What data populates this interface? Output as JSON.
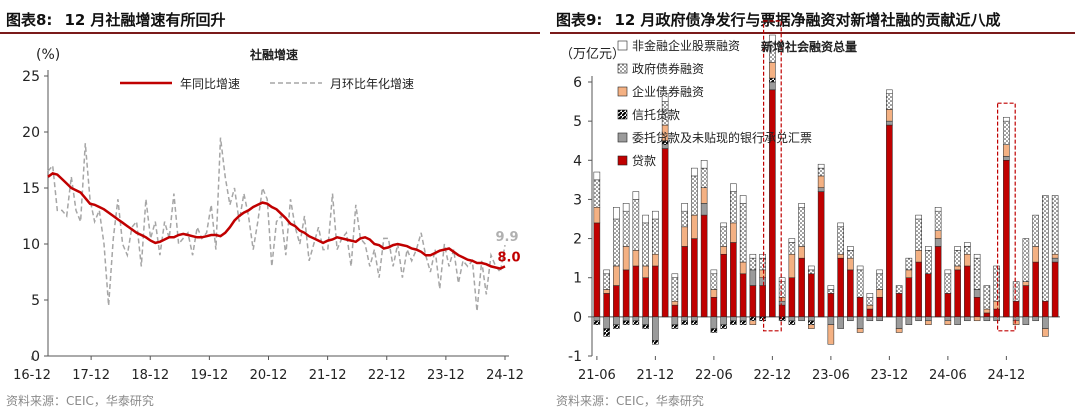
{
  "left": {
    "fig_label": "图表8:",
    "title": "12 月社融增速有所回升",
    "source": "资料来源：CEIC，华泰研究",
    "chart_data": {
      "type": "line",
      "title": "社融增速",
      "ylabel": "(%)",
      "ylim": [
        0,
        25
      ],
      "yticks": [
        0,
        5,
        10,
        15,
        20,
        25
      ],
      "xticks": [
        "16-12",
        "17-12",
        "18-12",
        "19-12",
        "20-12",
        "21-12",
        "22-12",
        "23-12",
        "24-12"
      ],
      "legend_placement": "top",
      "annotations": {
        "yoy_last": "8.0",
        "mom_last": "9.9"
      },
      "colors": {
        "yoy": "#c00000",
        "mom": "#a6a6a6",
        "label_mom": "#b0b0b0"
      },
      "series": [
        {
          "name": "年同比增速",
          "style": "solid",
          "values": [
            16.0,
            16.3,
            16.2,
            15.8,
            15.4,
            15.0,
            14.8,
            14.6,
            14.1,
            13.6,
            13.5,
            13.3,
            13.1,
            12.8,
            12.5,
            12.2,
            11.9,
            11.6,
            11.3,
            11.0,
            10.8,
            10.6,
            10.3,
            10.1,
            10.2,
            10.4,
            10.6,
            10.6,
            10.8,
            10.9,
            10.8,
            10.7,
            10.6,
            10.6,
            10.7,
            10.8,
            10.8,
            10.7,
            11.0,
            11.5,
            12.1,
            12.5,
            12.8,
            13.0,
            13.3,
            13.5,
            13.7,
            13.6,
            13.3,
            13.1,
            12.7,
            12.3,
            11.8,
            11.6,
            11.2,
            11.0,
            10.7,
            10.5,
            10.3,
            10.1,
            10.3,
            10.4,
            10.6,
            10.5,
            10.4,
            10.3,
            10.2,
            10.5,
            10.6,
            10.4,
            10.0,
            9.9,
            9.6,
            9.7,
            9.9,
            10.0,
            9.9,
            9.8,
            9.6,
            9.5,
            9.3,
            9.0,
            9.0,
            9.2,
            9.4,
            9.5,
            9.6,
            9.3,
            9.0,
            8.8,
            8.6,
            8.5,
            8.3,
            8.3,
            8.2,
            8.0,
            7.9,
            7.8,
            8.0
          ]
        },
        {
          "name": "月环比年化增速",
          "style": "dashed",
          "values": [
            16.5,
            17.0,
            13.0,
            13.0,
            12.5,
            16.0,
            13.0,
            12.0,
            19.0,
            14.0,
            12.0,
            13.0,
            10.0,
            4.5,
            10.5,
            14.0,
            10.0,
            9.0,
            11.5,
            12.0,
            8.0,
            14.0,
            10.5,
            12.0,
            9.0,
            12.0,
            10.5,
            14.5,
            10.0,
            10.5,
            11.0,
            9.0,
            11.5,
            10.5,
            11.0,
            13.5,
            9.5,
            19.5,
            16.0,
            13.5,
            15.0,
            12.0,
            14.5,
            12.5,
            9.5,
            12.0,
            15.0,
            14.0,
            8.0,
            12.0,
            12.5,
            9.0,
            14.0,
            11.5,
            10.0,
            12.5,
            8.5,
            10.0,
            11.5,
            9.5,
            9.5,
            14.5,
            9.5,
            10.5,
            11.0,
            8.0,
            13.5,
            10.5,
            10.0,
            8.0,
            9.5,
            7.0,
            10.5,
            10.5,
            8.0,
            10.0,
            7.0,
            9.5,
            8.5,
            9.5,
            11.0,
            9.0,
            7.5,
            9.5,
            6.0,
            10.0,
            8.0,
            9.5,
            6.5,
            8.5,
            8.0,
            8.5,
            4.0,
            8.5,
            5.5,
            9.0,
            8.0,
            7.5,
            9.9
          ]
        }
      ]
    }
  },
  "right": {
    "fig_label": "图表9:",
    "title": "12 月政府债净发行与票据净融资对新增社融的贡献近八成",
    "source": "资料来源：CEIC，华泰研究",
    "chart_data": {
      "type": "bar",
      "stacked": true,
      "ylabel": "（万亿元）",
      "ylim": [
        -1,
        6
      ],
      "yticks": [
        -1,
        0,
        1,
        2,
        3,
        4,
        5,
        6
      ],
      "xticks": [
        "21-06",
        "21-12",
        "22-06",
        "22-12",
        "23-06",
        "23-12",
        "24-06",
        "24-12"
      ],
      "total_label": "新增社会融资总量",
      "highlighted_months": [
        18,
        42
      ],
      "colors": {
        "loan": "#c00000",
        "entrust": "#9b9b9b",
        "corp": "#f4b183",
        "frame": "#c00000"
      },
      "legend": [
        {
          "key": "other",
          "label": "非金融企业股票融资"
        },
        {
          "key": "gov",
          "label": "政府债券融资"
        },
        {
          "key": "corp",
          "label": "企业债券融资"
        },
        {
          "key": "trust",
          "label": "信托贷款"
        },
        {
          "key": "entrust",
          "label": "委托贷款及未贴现的银行承兑汇票"
        },
        {
          "key": "loan",
          "label": "贷款"
        }
      ],
      "series": [
        {
          "name": "贷款",
          "key": "loan",
          "values": [
            2.4,
            0.6,
            0.8,
            1.2,
            1.3,
            1.0,
            1.3,
            4.3,
            0.3,
            1.8,
            2.0,
            2.6,
            0.5,
            1.6,
            1.9,
            1.1,
            0.8,
            0.8,
            5.8,
            0.3,
            1.0,
            1.5,
            1.1,
            3.2,
            0.6,
            1.5,
            1.2,
            0.5,
            0.2,
            0.5,
            4.9,
            0.6,
            1.0,
            1.4,
            1.1,
            1.8,
            0.6,
            1.2,
            1.3,
            0.5,
            0.1,
            0.2,
            4.0,
            0.4,
            0.8,
            1.4,
            0.4,
            1.4
          ]
        },
        {
          "name": "委托贷款及未贴现的银行承兑汇票",
          "key": "entrust",
          "values": [
            -0.1,
            -0.3,
            -0.2,
            -0.1,
            -0.1,
            -0.2,
            -0.6,
            0.1,
            -0.2,
            -0.1,
            -0.1,
            0.3,
            -0.3,
            -0.2,
            -0.1,
            -0.1,
            0.4,
            0.2,
            0.2,
            0.1,
            -0.1,
            -0.1,
            -0.1,
            0.1,
            -0.2,
            -0.3,
            -0.1,
            -0.3,
            -0.1,
            -0.1,
            0.1,
            -0.3,
            -0.2,
            -0.1,
            -0.1,
            0.2,
            -0.1,
            -0.2,
            -0.1,
            0.2,
            -0.1,
            -0.1,
            0.1,
            -0.1,
            -0.2,
            -0.1,
            -0.3,
            0.1
          ]
        },
        {
          "name": "信托贷款",
          "key": "trust",
          "values": [
            -0.1,
            -0.2,
            -0.1,
            -0.1,
            -0.1,
            -0.1,
            -0.1,
            0.1,
            -0.1,
            -0.1,
            -0.1,
            0.0,
            -0.1,
            -0.1,
            -0.1,
            -0.1,
            -0.1,
            -0.1,
            0.1,
            -0.1,
            -0.1,
            0.0,
            -0.1,
            0.0,
            0.0,
            0.0,
            0.0,
            0.0,
            0.0,
            0.0,
            0.0,
            0.0,
            0.0,
            0.0,
            0.0,
            0.0,
            0.0,
            0.0,
            0.0,
            0.0,
            0.0,
            0.0,
            0.0,
            0.0,
            0.0,
            0.0,
            0.0,
            0.0
          ]
        },
        {
          "name": "企业债券融资",
          "key": "corp",
          "values": [
            0.4,
            0.1,
            0.5,
            0.6,
            0.4,
            0.3,
            0.3,
            0.4,
            0.1,
            0.5,
            0.6,
            0.4,
            0.2,
            0.2,
            0.5,
            0.3,
            -0.1,
            0.2,
            0.4,
            0.1,
            0.6,
            0.3,
            -0.1,
            0.3,
            -0.5,
            0.1,
            0.3,
            -0.1,
            0.1,
            0.2,
            0.3,
            -0.1,
            0.2,
            0.3,
            -0.1,
            0.2,
            -0.1,
            0.1,
            0.3,
            -0.1,
            0.1,
            0.2,
            0.3,
            -0.1,
            0.1,
            0.4,
            -0.2,
            0.1
          ]
        },
        {
          "name": "政府债券融资",
          "key": "gov",
          "values": [
            0.7,
            0.4,
            1.2,
            0.9,
            1.3,
            1.1,
            0.9,
            0.6,
            0.6,
            0.4,
            1.0,
            0.5,
            0.4,
            0.5,
            0.8,
            1.5,
            0.3,
            0.3,
            0.5,
            0.4,
            0.3,
            1.0,
            0.1,
            0.2,
            0.1,
            0.7,
            0.2,
            0.7,
            0.2,
            0.4,
            0.4,
            0.2,
            0.3,
            0.8,
            0.6,
            0.5,
            0.5,
            0.4,
            0.2,
            0.8,
            0.6,
            0.9,
            0.6,
            0.5,
            1.1,
            0.8,
            2.7,
            1.5
          ]
        },
        {
          "name": "非金融企业股票融资",
          "key": "other",
          "values": [
            0.2,
            0.1,
            0.3,
            0.2,
            0.2,
            0.2,
            0.2,
            0.2,
            0.1,
            0.2,
            0.2,
            0.2,
            0.1,
            0.1,
            0.2,
            0.2,
            0.1,
            0.1,
            0.2,
            0.1,
            0.1,
            0.1,
            0.1,
            0.1,
            0.1,
            0.1,
            0.1,
            0.1,
            0.1,
            0.1,
            0.1,
            0.0,
            0.0,
            0.1,
            0.1,
            0.1,
            0.1,
            0.1,
            0.1,
            0.1,
            0.0,
            0.0,
            0.1,
            0.0,
            0.0,
            0.0,
            0.0,
            0.0
          ]
        }
      ]
    }
  }
}
